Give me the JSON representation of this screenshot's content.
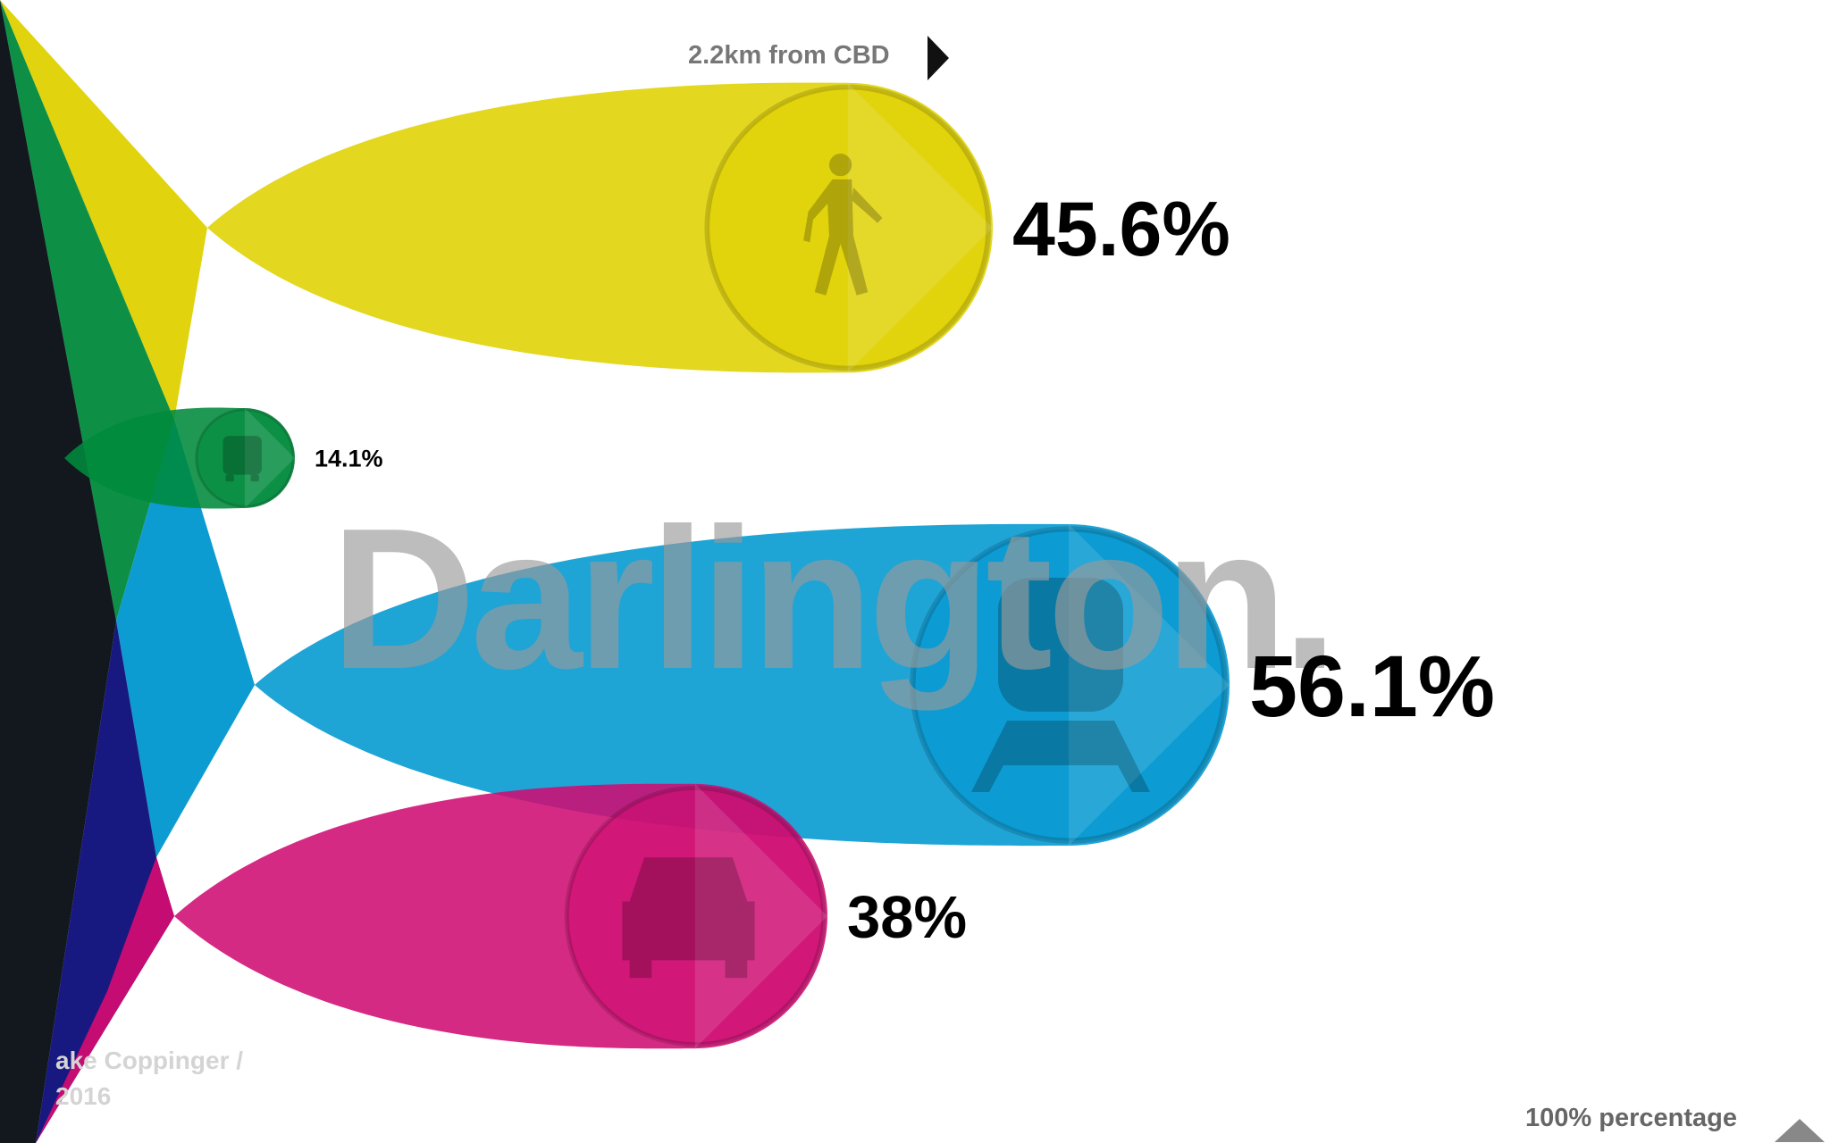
{
  "header": {
    "distance_text": "2.2km from CBD"
  },
  "credit": {
    "line1": "ake Coppinger /",
    "line2": "2016"
  },
  "footer": {
    "mode_text": "100% percentage"
  },
  "colors": {
    "walk": "#dfd100",
    "bus": "#008a3c",
    "train": "#0097d0",
    "car": "#cf0c72",
    "watermark": "#9a9a9a",
    "spine": "#050c12"
  },
  "chart_data": {
    "type": "bubble",
    "title": "Darlington.",
    "series": [
      {
        "name": "walk",
        "icon": "walk-icon",
        "value": 45.6,
        "label": "45.6%"
      },
      {
        "name": "bus",
        "icon": "bus-icon",
        "value": 14.1,
        "label": "14.1%"
      },
      {
        "name": "train",
        "icon": "train-icon",
        "value": 56.1,
        "label": "56.1%"
      },
      {
        "name": "car",
        "icon": "car-icon",
        "value": 38,
        "label": "38%"
      }
    ]
  }
}
